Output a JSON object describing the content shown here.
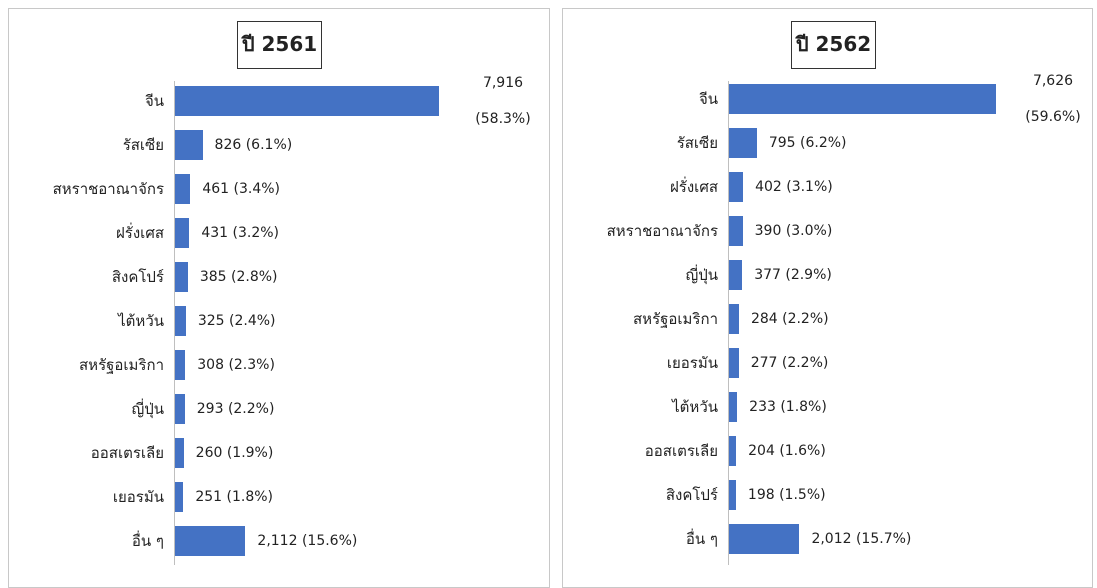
{
  "chart_data": [
    {
      "type": "bar",
      "orientation": "horizontal",
      "title": "ปี 2561",
      "color": "#4472c4",
      "categories": [
        "จีน",
        "รัสเซีย",
        "สหราชอาณาจักร",
        "ฝรั่งเศส",
        "สิงคโปร์",
        "ไต้หวัน",
        "สหรัฐอเมริกา",
        "ญี่ปุ่น",
        "ออสเตรเลีย",
        "เยอรมัน",
        "อื่น ๆ"
      ],
      "values": [
        7916,
        826,
        461,
        431,
        385,
        325,
        308,
        293,
        260,
        251,
        2112
      ],
      "value_labels": [
        "7,916 (58.3%)",
        "826 (6.1%)",
        "461 (3.4%)",
        "431 (3.2%)",
        "385 (2.8%)",
        "325 (2.4%)",
        "308 (2.3%)",
        "293 (2.2%)",
        "260 (1.9%)",
        "251 (1.8%)",
        "2,112 (15.6%)"
      ]
    },
    {
      "type": "bar",
      "orientation": "horizontal",
      "title": "ปี 2562",
      "color": "#4472c4",
      "categories": [
        "จีน",
        "รัสเซีย",
        "ฝรั่งเศส",
        "สหราชอาณาจักร",
        "ญี่ปุ่น",
        "สหรัฐอเมริกา",
        "เยอรมัน",
        "ไต้หวัน",
        "ออสเตรเลีย",
        "สิงคโปร์",
        "อื่น ๆ"
      ],
      "values": [
        7626,
        795,
        402,
        390,
        377,
        284,
        277,
        233,
        204,
        198,
        2012
      ],
      "value_labels": [
        "7,626 (59.6%)",
        "795 (6.2%)",
        "402 (3.1%)",
        "390 (3.0%)",
        "377 (2.9%)",
        "284 (2.2%)",
        "277 (2.2%)",
        "233 (1.8%)",
        "204 (1.6%)",
        "198 (1.5%)",
        "2,012 (15.7%)"
      ]
    }
  ]
}
